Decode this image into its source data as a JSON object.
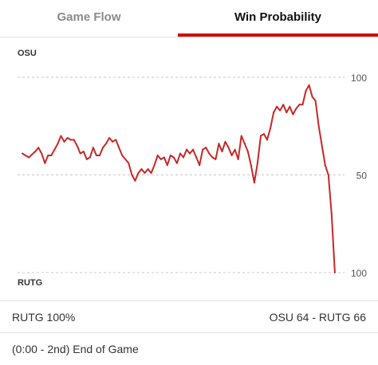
{
  "tabs": {
    "game_flow": "Game Flow",
    "win_probability": "Win Probability"
  },
  "status": {
    "win_text": "RUTG 100%",
    "score": "OSU 64  - RUTG 66",
    "clock": "(0:00 - 2nd) End of Game"
  },
  "colors": {
    "line": "#c62828",
    "accent": "#d50a0a"
  },
  "chart_data": {
    "type": "line",
    "top_label": "OSU",
    "bottom_label": "RUTG",
    "y_ticks": [
      {
        "value": 100,
        "label": "100"
      },
      {
        "value": 50,
        "label": "50"
      },
      {
        "value": 0,
        "label": "100"
      }
    ],
    "ylim": [
      0,
      100
    ],
    "xlim": [
      0,
      100
    ],
    "grid": true,
    "series": [
      {
        "values": [
          [
            0,
            61
          ],
          [
            2,
            59
          ],
          [
            4,
            62
          ],
          [
            5,
            64
          ],
          [
            6,
            61
          ],
          [
            7,
            56
          ],
          [
            8,
            60
          ],
          [
            9,
            60
          ],
          [
            10,
            63
          ],
          [
            11,
            66
          ],
          [
            12,
            70
          ],
          [
            13,
            67
          ],
          [
            14,
            69
          ],
          [
            15,
            68
          ],
          [
            16,
            68
          ],
          [
            17,
            65
          ],
          [
            18,
            61
          ],
          [
            19,
            62
          ],
          [
            20,
            58
          ],
          [
            21,
            59
          ],
          [
            22,
            64
          ],
          [
            23,
            60
          ],
          [
            24,
            60
          ],
          [
            25,
            64
          ],
          [
            26,
            66
          ],
          [
            27,
            69
          ],
          [
            28,
            67
          ],
          [
            29,
            68
          ],
          [
            30,
            64
          ],
          [
            31,
            60
          ],
          [
            32,
            58
          ],
          [
            33,
            56
          ],
          [
            34,
            50
          ],
          [
            35,
            47
          ],
          [
            36,
            51
          ],
          [
            37,
            53
          ],
          [
            38,
            51
          ],
          [
            39,
            53
          ],
          [
            40,
            51
          ],
          [
            41,
            55
          ],
          [
            42,
            60
          ],
          [
            43,
            58
          ],
          [
            44,
            59
          ],
          [
            45,
            55
          ],
          [
            46,
            60
          ],
          [
            47,
            59
          ],
          [
            48,
            56
          ],
          [
            49,
            61
          ],
          [
            50,
            59
          ],
          [
            51,
            63
          ],
          [
            52,
            61
          ],
          [
            53,
            63
          ],
          [
            54,
            59
          ],
          [
            55,
            55
          ],
          [
            56,
            63
          ],
          [
            57,
            64
          ],
          [
            58,
            61
          ],
          [
            59,
            59
          ],
          [
            60,
            58
          ],
          [
            61,
            66
          ],
          [
            62,
            62
          ],
          [
            63,
            67
          ],
          [
            64,
            64
          ],
          [
            65,
            60
          ],
          [
            66,
            63
          ],
          [
            67,
            58
          ],
          [
            68,
            70
          ],
          [
            69,
            66
          ],
          [
            70,
            62
          ],
          [
            71,
            55
          ],
          [
            72,
            46
          ],
          [
            73,
            56
          ],
          [
            74,
            70
          ],
          [
            75,
            71
          ],
          [
            76,
            68
          ],
          [
            77,
            74
          ],
          [
            78,
            82
          ],
          [
            79,
            85
          ],
          [
            80,
            83
          ],
          [
            81,
            86
          ],
          [
            82,
            82
          ],
          [
            83,
            85
          ],
          [
            84,
            81
          ],
          [
            85,
            84
          ],
          [
            86,
            86
          ],
          [
            87,
            86
          ],
          [
            88,
            93
          ],
          [
            89,
            96
          ],
          [
            90,
            90
          ],
          [
            91,
            88
          ],
          [
            92,
            75
          ],
          [
            93,
            65
          ],
          [
            94,
            55
          ],
          [
            95,
            50
          ],
          [
            96,
            30
          ],
          [
            97,
            0
          ]
        ]
      }
    ]
  }
}
